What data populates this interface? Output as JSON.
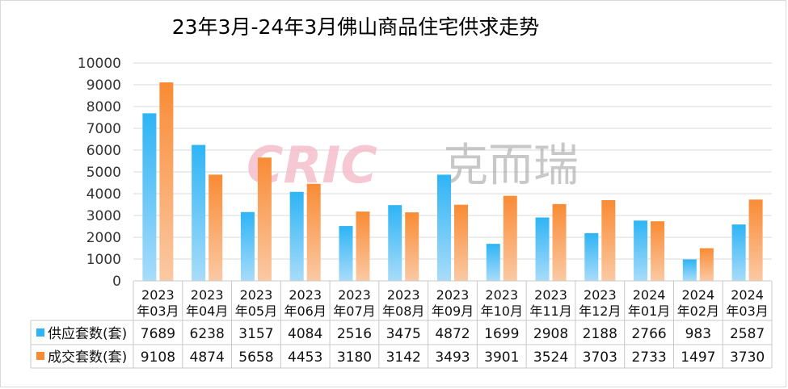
{
  "chart_data": {
    "type": "bar",
    "title": "23年3月-24年3月佛山商品住宅供求走势",
    "watermark": "CRIC 克而瑞",
    "categories": [
      [
        "2023",
        "年03月"
      ],
      [
        "2023",
        "年04月"
      ],
      [
        "2023",
        "年05月"
      ],
      [
        "2023",
        "年06月"
      ],
      [
        "2023",
        "年07月"
      ],
      [
        "2023",
        "年08月"
      ],
      [
        "2023",
        "年09月"
      ],
      [
        "2023",
        "年10月"
      ],
      [
        "2023",
        "年11月"
      ],
      [
        "2023",
        "年12月"
      ],
      [
        "2024",
        "年01月"
      ],
      [
        "2024",
        "年02月"
      ],
      [
        "2024",
        "年03月"
      ]
    ],
    "series": [
      {
        "name": "供应套数(套)",
        "color": "#2eb4f5",
        "color_light": "#a8dcfa",
        "values": [
          7689,
          6238,
          3157,
          4084,
          2516,
          3475,
          4872,
          1699,
          2908,
          2188,
          2766,
          983,
          2587
        ]
      },
      {
        "name": "成交套数(套)",
        "color": "#f98b34",
        "color_light": "#fbc9a4",
        "values": [
          9108,
          4874,
          5658,
          4453,
          3180,
          3142,
          3493,
          3901,
          3524,
          3703,
          2733,
          1497,
          3730
        ]
      }
    ],
    "y_axis": {
      "ylim": [
        0,
        10000
      ],
      "ticks": [
        "0",
        "1000",
        "2000",
        "3000",
        "4000",
        "5000",
        "6000",
        "7000",
        "8000",
        "9000",
        "10000"
      ]
    },
    "grid": true,
    "data_table": true
  }
}
